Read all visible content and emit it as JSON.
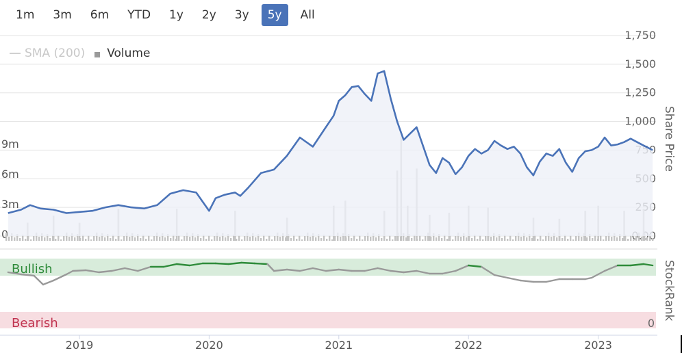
{
  "range_selector": {
    "buttons": [
      "1m",
      "3m",
      "6m",
      "YTD",
      "1y",
      "2y",
      "3y",
      "5y",
      "All"
    ],
    "active": "5y"
  },
  "legend": {
    "sma_label": "SMA (200)",
    "volume_label": "Volume"
  },
  "colors": {
    "price_line": "#4a73b8",
    "price_fill": "#edf0f8",
    "volume_bar": "#c4c4c4",
    "rank_neutral": "#999999",
    "rank_bullish": "#2e8b3a",
    "bullish_band": "#d8ecdb",
    "bearish_band": "#f7dde1",
    "grid": "#e3e3e3"
  },
  "chart_data": {
    "type": "line",
    "x_axis": {
      "ticks": [
        "2019",
        "2020",
        "2021",
        "2022",
        "2023"
      ]
    },
    "price_axis": {
      "title": "Share Price",
      "ticks": [
        "0.00",
        "250",
        "500",
        "750",
        "1,000",
        "1,250",
        "1,500",
        "1,750"
      ],
      "ylim": [
        0,
        1750
      ]
    },
    "volume_axis": {
      "ticks": [
        "0",
        "3m",
        "6m",
        "9m"
      ],
      "ylim": [
        0,
        12
      ]
    },
    "price_series": {
      "x": [
        2018.45,
        2018.55,
        2018.62,
        2018.7,
        2018.8,
        2018.9,
        2019.0,
        2019.1,
        2019.2,
        2019.3,
        2019.4,
        2019.5,
        2019.6,
        2019.7,
        2019.8,
        2019.9,
        2019.95,
        2020.0,
        2020.05,
        2020.12,
        2020.2,
        2020.24,
        2020.3,
        2020.4,
        2020.5,
        2020.6,
        2020.7,
        2020.8,
        2020.9,
        2020.96,
        2021.0,
        2021.05,
        2021.1,
        2021.15,
        2021.2,
        2021.25,
        2021.3,
        2021.35,
        2021.4,
        2021.45,
        2021.5,
        2021.6,
        2021.7,
        2021.75,
        2021.8,
        2021.85,
        2021.9,
        2021.95,
        2022.0,
        2022.05,
        2022.1,
        2022.15,
        2022.2,
        2022.25,
        2022.3,
        2022.35,
        2022.4,
        2022.45,
        2022.5,
        2022.55,
        2022.6,
        2022.65,
        2022.7,
        2022.75,
        2022.8,
        2022.85,
        2022.9,
        2022.95,
        2023.0,
        2023.05,
        2023.1,
        2023.15,
        2023.2,
        2023.25,
        2023.3,
        2023.35,
        2023.42
      ],
      "values": [
        200,
        230,
        270,
        240,
        230,
        200,
        210,
        220,
        250,
        270,
        250,
        240,
        270,
        370,
        400,
        380,
        300,
        220,
        330,
        360,
        380,
        350,
        420,
        550,
        580,
        700,
        860,
        780,
        950,
        1050,
        1180,
        1230,
        1300,
        1310,
        1240,
        1180,
        1420,
        1440,
        1200,
        1000,
        840,
        950,
        620,
        550,
        680,
        640,
        540,
        600,
        700,
        760,
        720,
        750,
        830,
        790,
        760,
        780,
        720,
        600,
        530,
        650,
        720,
        700,
        760,
        640,
        560,
        680,
        740,
        750,
        780,
        860,
        790,
        800,
        820,
        850,
        820,
        790,
        750
      ]
    },
    "volume_series": {
      "x": [
        2018.6,
        2018.8,
        2019.0,
        2019.3,
        2019.75,
        2020.2,
        2020.6,
        2020.96,
        2021.05,
        2021.35,
        2021.45,
        2021.48,
        2021.53,
        2021.6,
        2021.7,
        2021.85,
        2022.0,
        2022.15,
        2022.5,
        2022.7,
        2022.9,
        2023.0,
        2023.2,
        2023.35
      ],
      "values": [
        1.8,
        2.5,
        1.8,
        3.2,
        3.2,
        3.0,
        2.3,
        3.5,
        4.0,
        3.0,
        7.0,
        10.4,
        3.5,
        7.2,
        2.6,
        2.8,
        3.5,
        3.3,
        2.3,
        2.2,
        3.0,
        3.5,
        3.0,
        3.2
      ]
    },
    "stockrank_axis": {
      "title": "StockRank",
      "tick": "0",
      "bullish_label": "Bullish",
      "bearish_label": "Bearish",
      "ylim": [
        0,
        100
      ]
    },
    "stockrank_series": {
      "x": [
        2018.45,
        2018.55,
        2018.65,
        2018.72,
        2018.8,
        2018.9,
        2018.95,
        2019.05,
        2019.15,
        2019.25,
        2019.35,
        2019.45,
        2019.55,
        2019.65,
        2019.75,
        2019.85,
        2019.95,
        2020.05,
        2020.15,
        2020.25,
        2020.35,
        2020.45,
        2020.5,
        2020.6,
        2020.7,
        2020.8,
        2020.9,
        2021.0,
        2021.1,
        2021.2,
        2021.3,
        2021.4,
        2021.5,
        2021.6,
        2021.7,
        2021.8,
        2021.9,
        2022.0,
        2022.1,
        2022.2,
        2022.3,
        2022.4,
        2022.5,
        2022.6,
        2022.7,
        2022.8,
        2022.9,
        2022.95,
        2023.05,
        2023.15,
        2023.25,
        2023.35,
        2023.42
      ],
      "values": [
        80,
        77,
        75,
        62,
        68,
        77,
        82,
        83,
        80,
        82,
        86,
        82,
        88,
        88,
        92,
        90,
        93,
        93,
        92,
        94,
        93,
        92,
        82,
        84,
        82,
        86,
        82,
        84,
        82,
        82,
        86,
        82,
        80,
        82,
        78,
        78,
        82,
        90,
        88,
        76,
        72,
        68,
        66,
        66,
        70,
        70,
        70,
        72,
        82,
        90,
        90,
        92,
        90
      ]
    }
  }
}
